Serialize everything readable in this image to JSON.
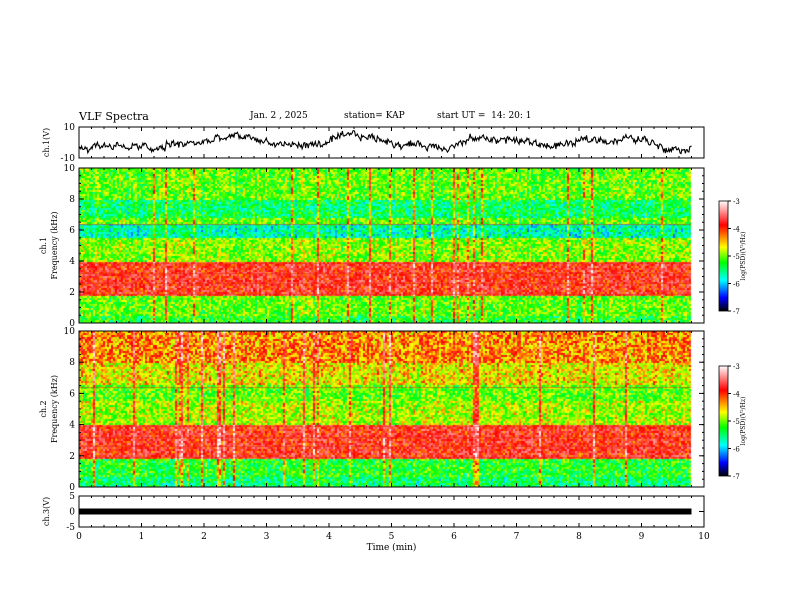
{
  "header": {
    "title": "VLF Spectra",
    "date": "Jan. 2 , 2025",
    "station": "station= KAP",
    "start": "start UT =  14: 20: 1"
  },
  "chart_data": [
    {
      "type": "line",
      "name": "ch1-waveform",
      "ylabel": "ch.1(V)",
      "ylim": [
        -10,
        10
      ],
      "y_ticks": [
        "10",
        "-10"
      ],
      "x_range_min": [
        0,
        9.8
      ],
      "baseline_v": 0.5,
      "noise_amplitude_v": 3.5
    },
    {
      "type": "heatmap",
      "name": "ch1-spectrogram",
      "ylabel_line1": "ch.1",
      "ylabel_line2": "Frequency (kHz)",
      "ylim": [
        0,
        10
      ],
      "y_ticks": [
        "0",
        "2",
        "4",
        "6",
        "8",
        "10"
      ],
      "colorbar": {
        "label": "log(PSD)(V²/Hz)",
        "range": [
          -7,
          -3
        ],
        "ticks": [
          "-3",
          "-4",
          "-5",
          "-6",
          "-7"
        ]
      },
      "bands": [
        {
          "from_khz": 0.0,
          "to_khz": 0.5,
          "level": -5.2
        },
        {
          "from_khz": 0.5,
          "to_khz": 1.8,
          "level": -5.0
        },
        {
          "from_khz": 1.8,
          "to_khz": 4.0,
          "level": -3.9
        },
        {
          "from_khz": 4.0,
          "to_khz": 5.5,
          "level": -4.9
        },
        {
          "from_khz": 5.5,
          "to_khz": 6.4,
          "level": -5.6
        },
        {
          "from_khz": 6.4,
          "to_khz": 6.8,
          "level": -5.0
        },
        {
          "from_khz": 6.8,
          "to_khz": 8.0,
          "level": -5.4
        },
        {
          "from_khz": 8.0,
          "to_khz": 10.0,
          "level": -5.0
        }
      ]
    },
    {
      "type": "heatmap",
      "name": "ch2-spectrogram",
      "ylabel_line1": "ch.2",
      "ylabel_line2": "Frequency (kHz)",
      "ylim": [
        0,
        10
      ],
      "y_ticks": [
        "0",
        "2",
        "4",
        "6",
        "8",
        "10"
      ],
      "colorbar": {
        "label": "log(PSD)(V²/Hz)",
        "range": [
          -7,
          -3
        ],
        "ticks": [
          "-3",
          "-4",
          "-5",
          "-6",
          "-7"
        ]
      },
      "bands": [
        {
          "from_khz": 0.0,
          "to_khz": 0.6,
          "level": -5.4
        },
        {
          "from_khz": 0.6,
          "to_khz": 1.8,
          "level": -5.2
        },
        {
          "from_khz": 1.8,
          "to_khz": 4.0,
          "level": -3.9
        },
        {
          "from_khz": 4.0,
          "to_khz": 5.5,
          "level": -4.8
        },
        {
          "from_khz": 5.5,
          "to_khz": 6.6,
          "level": -5.0
        },
        {
          "from_khz": 6.6,
          "to_khz": 8.0,
          "level": -4.6
        },
        {
          "from_khz": 8.0,
          "to_khz": 10.0,
          "level": -4.3
        }
      ]
    },
    {
      "type": "line",
      "name": "ch3-waveform",
      "ylabel": "ch.3(V)",
      "ylim": [
        -5,
        5
      ],
      "y_ticks": [
        "5",
        "0",
        "-5"
      ],
      "level_v": 0,
      "x_range_min": [
        0,
        9.8
      ]
    }
  ],
  "x_axis": {
    "label": "Time (min)",
    "range": [
      0,
      10
    ],
    "ticks": [
      "0",
      "1",
      "2",
      "3",
      "4",
      "5",
      "6",
      "7",
      "8",
      "9",
      "10"
    ]
  }
}
